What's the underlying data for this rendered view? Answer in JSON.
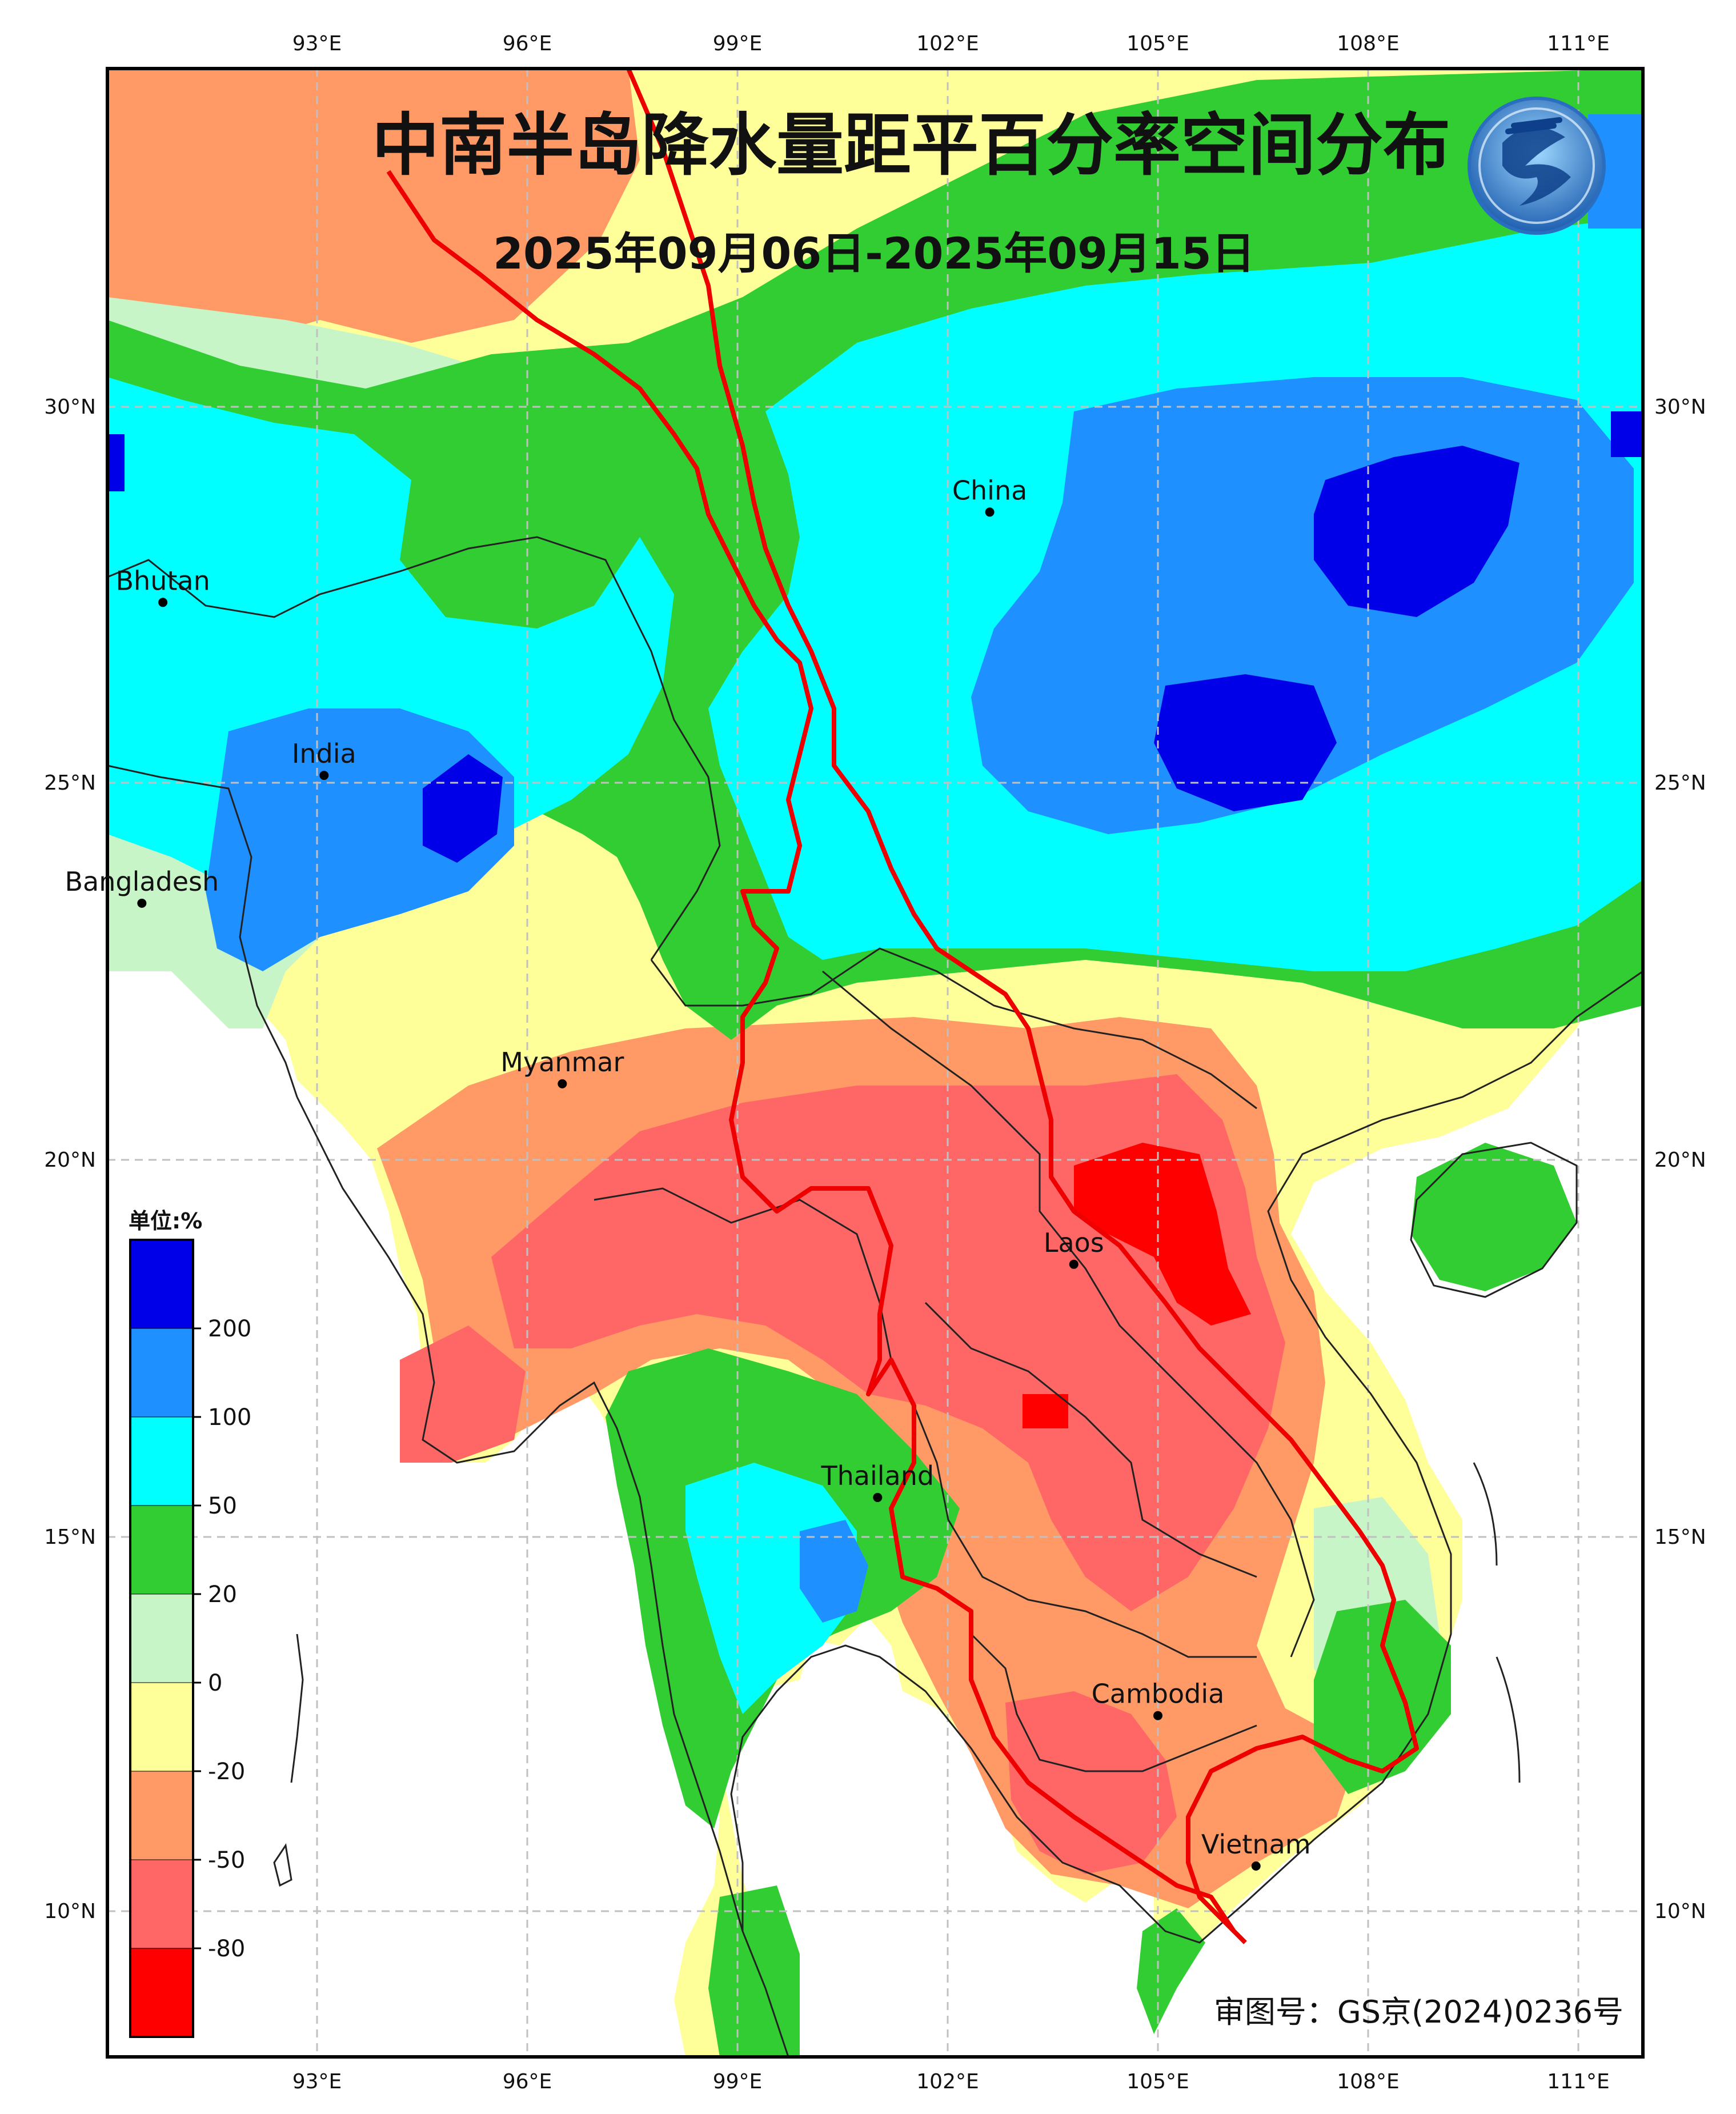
{
  "title": "中南半岛降水量距平百分率空间分布",
  "subtitle": "2025年09月06日-2025年09月15日",
  "approval_number": "审图号：GS京(2024)0236号",
  "legend": {
    "unit_label": "单位:%",
    "tick_labels": [
      "200",
      "100",
      "50",
      "20",
      "0",
      "-20",
      "-50",
      "-80"
    ],
    "bins": [
      {
        "label": ">200",
        "color": "#0000e8"
      },
      {
        "label": "100~200",
        "color": "#1e90ff"
      },
      {
        "label": "50~100",
        "color": "#00ffff"
      },
      {
        "label": "20~50",
        "color": "#32cd32"
      },
      {
        "label": "0~20",
        "color": "#c8f5c8"
      },
      {
        "label": "-20~0",
        "color": "#ffff99"
      },
      {
        "label": "-50~-20",
        "color": "#ff9966"
      },
      {
        "label": "-80~-50",
        "color": "#ff6666"
      },
      {
        "label": "<-80",
        "color": "#ff0000"
      }
    ]
  },
  "axes": {
    "lon_labels": [
      "93°E",
      "96°E",
      "99°E",
      "102°E",
      "105°E",
      "108°E",
      "111°E"
    ],
    "lat_labels": [
      "30°N",
      "25°N",
      "20°N",
      "15°N",
      "10°N"
    ]
  },
  "places": [
    {
      "name": "China",
      "lon": 102.6,
      "lat": 28.6
    },
    {
      "name": "Bhutan",
      "lon": 90.8,
      "lat": 27.4
    },
    {
      "name": "India",
      "lon": 93.1,
      "lat": 25.1
    },
    {
      "name": "Bangladesh",
      "lon": 90.5,
      "lat": 23.4
    },
    {
      "name": "Myanmar",
      "lon": 96.5,
      "lat": 21.0
    },
    {
      "name": "Laos",
      "lon": 103.8,
      "lat": 18.6
    },
    {
      "name": "Thailand",
      "lon": 101.0,
      "lat": 15.5
    },
    {
      "name": "Cambodia",
      "lon": 105.0,
      "lat": 12.6
    },
    {
      "name": "Vietnam",
      "lon": 106.4,
      "lat": 10.6
    }
  ],
  "colors": {
    "land_background": "#ffff99",
    "sea": "#ffffff",
    "border_line": "#222222",
    "river": "#ee0000"
  }
}
